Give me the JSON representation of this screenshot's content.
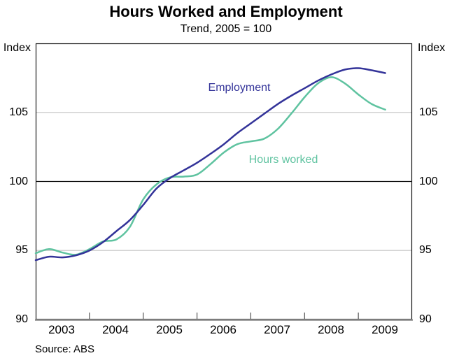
{
  "chart_data": {
    "type": "line",
    "title": "Hours Worked and Employment",
    "subtitle": "Trend, 2005 = 100",
    "ylabel": "Index",
    "source": "Source: ABS",
    "ylim": [
      90,
      110
    ],
    "y_tick_labels": [
      "105",
      "100",
      "95",
      "90"
    ],
    "y_tick_values": [
      105,
      100,
      95,
      90
    ],
    "reference_line": 100,
    "grid": "horizontal",
    "x_axis": {
      "start": 2003,
      "end": 2010
    },
    "x_tick_labels": [
      "2003",
      "2004",
      "2005",
      "2006",
      "2007",
      "2008",
      "2009"
    ],
    "legend_position": "inline-labels",
    "colors": {
      "employment": "#333399",
      "hours_worked": "#5FC3A0",
      "gridline": "#d2d2d2",
      "reference": "#000000",
      "frame": "#1a1a1a",
      "baseline": "#8c8c8c",
      "tick": "#555555"
    },
    "series": [
      {
        "name": "Employment",
        "color_key": "employment",
        "x_start": 2003.0,
        "x_step": 0.25,
        "values": [
          94.3,
          94.55,
          94.5,
          94.65,
          95.0,
          95.6,
          96.4,
          97.2,
          98.3,
          99.5,
          100.25,
          100.8,
          101.35,
          102.0,
          102.7,
          103.5,
          104.2,
          104.9,
          105.6,
          106.2,
          106.75,
          107.3,
          107.75,
          108.1,
          108.2,
          108.05,
          107.85
        ]
      },
      {
        "name": "Hours worked",
        "color_key": "hours_worked",
        "x_start": 2003.0,
        "x_step": 0.25,
        "values": [
          94.8,
          95.1,
          94.85,
          94.7,
          95.1,
          95.65,
          95.8,
          96.7,
          98.7,
          99.8,
          100.3,
          100.35,
          100.5,
          101.25,
          102.1,
          102.7,
          102.9,
          103.1,
          103.8,
          104.9,
          106.1,
          107.1,
          107.55,
          107.1,
          106.3,
          105.6,
          105.2
        ]
      }
    ]
  }
}
